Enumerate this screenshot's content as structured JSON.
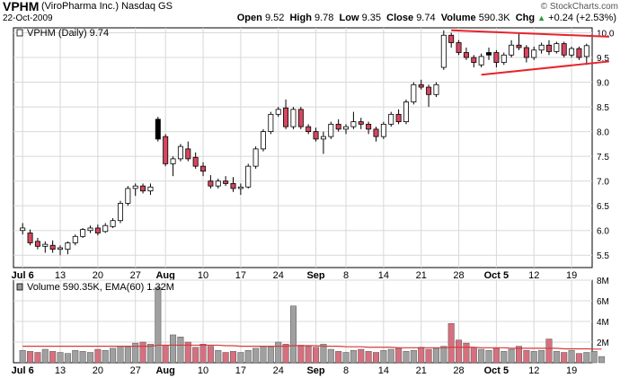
{
  "header": {
    "symbol": "VPHM",
    "company": "(ViroPharma Inc.)",
    "exchange": "Nasdaq GS",
    "date": "22-Oct-2009",
    "watermark": "© StockCharts.com",
    "open_label": "Open",
    "open": "9.52",
    "high_label": "High",
    "high": "9.78",
    "low_label": "Low",
    "low": "9.35",
    "close_label": "Close",
    "close": "9.74",
    "volume_label": "Volume",
    "volume": "590.3K",
    "chg_label": "Chg",
    "chg": "+0.24 (+2.53%)",
    "chg_arrow": "▲"
  },
  "price_legend": "VPHM (Daily) 9.74",
  "volume_legend": "Volume 590.35K, EMA(60) 1.32M",
  "colors": {
    "up": "#ffffff",
    "down": "#d6465e",
    "black": "#000000",
    "trend": "#e8242c",
    "volume_up": "#a0a0a0",
    "volume_down": "#d6707f",
    "ema": "#d63a3a",
    "grid": "#d8d8d8"
  },
  "chart_data": [
    {
      "type": "candlestick",
      "ylim": [
        5.25,
        10.1
      ],
      "y_ticks": [
        "5.5",
        "6.0",
        "6.5",
        "7.0",
        "7.5",
        "8.0",
        "8.5",
        "9.0",
        "9.5",
        "10.0"
      ],
      "x_tick_labels": [
        "Jul 6",
        "13",
        "20",
        "27",
        "Aug",
        "10",
        "17",
        "24",
        "Sep",
        "8",
        "14",
        "21",
        "28",
        "Oct 5",
        "12",
        "19"
      ],
      "x_tick_bold": [
        true,
        false,
        false,
        false,
        true,
        false,
        false,
        false,
        true,
        false,
        false,
        false,
        false,
        true,
        false,
        false
      ],
      "x_tick_index": [
        0,
        5,
        10,
        15,
        19,
        24,
        29,
        34,
        39,
        43,
        48,
        53,
        58,
        63,
        68,
        73
      ],
      "candles": [
        {
          "o": 6.0,
          "h": 6.15,
          "l": 5.92,
          "c": 6.05,
          "t": "up"
        },
        {
          "o": 5.95,
          "h": 6.02,
          "l": 5.7,
          "c": 5.75,
          "t": "down"
        },
        {
          "o": 5.78,
          "h": 5.85,
          "l": 5.62,
          "c": 5.68,
          "t": "down"
        },
        {
          "o": 5.68,
          "h": 5.78,
          "l": 5.55,
          "c": 5.72,
          "t": "up"
        },
        {
          "o": 5.7,
          "h": 5.8,
          "l": 5.55,
          "c": 5.62,
          "t": "down"
        },
        {
          "o": 5.62,
          "h": 5.7,
          "l": 5.5,
          "c": 5.65,
          "t": "up"
        },
        {
          "o": 5.62,
          "h": 5.78,
          "l": 5.52,
          "c": 5.75,
          "t": "up"
        },
        {
          "o": 5.75,
          "h": 5.92,
          "l": 5.7,
          "c": 5.88,
          "t": "up"
        },
        {
          "o": 5.88,
          "h": 6.05,
          "l": 5.85,
          "c": 6.02,
          "t": "up"
        },
        {
          "o": 6.0,
          "h": 6.1,
          "l": 5.95,
          "c": 6.05,
          "t": "up"
        },
        {
          "o": 6.05,
          "h": 6.12,
          "l": 5.9,
          "c": 5.95,
          "t": "down"
        },
        {
          "o": 5.98,
          "h": 6.15,
          "l": 5.95,
          "c": 6.1,
          "t": "up"
        },
        {
          "o": 6.08,
          "h": 6.25,
          "l": 6.05,
          "c": 6.2,
          "t": "up"
        },
        {
          "o": 6.2,
          "h": 6.6,
          "l": 6.15,
          "c": 6.55,
          "t": "up"
        },
        {
          "o": 6.55,
          "h": 6.9,
          "l": 6.5,
          "c": 6.85,
          "t": "up"
        },
        {
          "o": 6.85,
          "h": 6.95,
          "l": 6.7,
          "c": 6.9,
          "t": "up"
        },
        {
          "o": 6.9,
          "h": 6.95,
          "l": 6.75,
          "c": 6.8,
          "t": "down"
        },
        {
          "o": 6.8,
          "h": 6.95,
          "l": 6.72,
          "c": 6.88,
          "t": "up"
        },
        {
          "o": 8.25,
          "h": 8.3,
          "l": 7.8,
          "c": 7.85,
          "t": "black"
        },
        {
          "o": 7.9,
          "h": 7.95,
          "l": 7.3,
          "c": 7.35,
          "t": "down"
        },
        {
          "o": 7.35,
          "h": 7.5,
          "l": 7.1,
          "c": 7.45,
          "t": "up"
        },
        {
          "o": 7.45,
          "h": 7.75,
          "l": 7.4,
          "c": 7.7,
          "t": "up"
        },
        {
          "o": 7.65,
          "h": 7.8,
          "l": 7.4,
          "c": 7.45,
          "t": "down"
        },
        {
          "o": 7.48,
          "h": 7.58,
          "l": 7.25,
          "c": 7.3,
          "t": "down"
        },
        {
          "o": 7.3,
          "h": 7.38,
          "l": 7.1,
          "c": 7.2,
          "t": "down"
        },
        {
          "o": 7.0,
          "h": 7.12,
          "l": 6.85,
          "c": 6.9,
          "t": "down"
        },
        {
          "o": 6.9,
          "h": 7.05,
          "l": 6.85,
          "c": 7.0,
          "t": "up"
        },
        {
          "o": 7.0,
          "h": 7.1,
          "l": 6.9,
          "c": 6.95,
          "t": "down"
        },
        {
          "o": 6.95,
          "h": 7.08,
          "l": 6.78,
          "c": 6.85,
          "t": "down"
        },
        {
          "o": 6.85,
          "h": 6.95,
          "l": 6.72,
          "c": 6.88,
          "t": "up"
        },
        {
          "o": 6.88,
          "h": 7.35,
          "l": 6.85,
          "c": 7.3,
          "t": "up"
        },
        {
          "o": 7.3,
          "h": 7.7,
          "l": 7.25,
          "c": 7.65,
          "t": "up"
        },
        {
          "o": 7.65,
          "h": 8.05,
          "l": 7.6,
          "c": 8.0,
          "t": "up"
        },
        {
          "o": 8.0,
          "h": 8.4,
          "l": 7.95,
          "c": 8.35,
          "t": "up"
        },
        {
          "o": 8.35,
          "h": 8.5,
          "l": 8.3,
          "c": 8.45,
          "t": "up"
        },
        {
          "o": 8.48,
          "h": 8.65,
          "l": 8.05,
          "c": 8.1,
          "t": "down"
        },
        {
          "o": 8.1,
          "h": 8.5,
          "l": 8.05,
          "c": 8.45,
          "t": "up"
        },
        {
          "o": 8.45,
          "h": 8.5,
          "l": 8.05,
          "c": 8.1,
          "t": "down"
        },
        {
          "o": 8.1,
          "h": 8.15,
          "l": 7.95,
          "c": 8.0,
          "t": "down"
        },
        {
          "o": 8.0,
          "h": 8.08,
          "l": 7.8,
          "c": 7.85,
          "t": "down"
        },
        {
          "o": 7.85,
          "h": 8.0,
          "l": 7.55,
          "c": 7.9,
          "t": "up"
        },
        {
          "o": 7.9,
          "h": 8.2,
          "l": 7.85,
          "c": 8.15,
          "t": "up"
        },
        {
          "o": 8.15,
          "h": 8.25,
          "l": 8.0,
          "c": 8.05,
          "t": "down"
        },
        {
          "o": 8.05,
          "h": 8.15,
          "l": 7.95,
          "c": 8.1,
          "t": "up"
        },
        {
          "o": 8.1,
          "h": 8.4,
          "l": 8.05,
          "c": 8.2,
          "t": "up"
        },
        {
          "o": 8.2,
          "h": 8.28,
          "l": 8.05,
          "c": 8.15,
          "t": "down"
        },
        {
          "o": 8.15,
          "h": 8.2,
          "l": 7.95,
          "c": 8.05,
          "t": "down"
        },
        {
          "o": 8.05,
          "h": 8.1,
          "l": 7.8,
          "c": 7.9,
          "t": "down"
        },
        {
          "o": 7.9,
          "h": 8.2,
          "l": 7.85,
          "c": 8.15,
          "t": "up"
        },
        {
          "o": 8.15,
          "h": 8.4,
          "l": 8.1,
          "c": 8.35,
          "t": "up"
        },
        {
          "o": 8.35,
          "h": 8.45,
          "l": 8.15,
          "c": 8.2,
          "t": "down"
        },
        {
          "o": 8.2,
          "h": 8.65,
          "l": 8.15,
          "c": 8.6,
          "t": "up"
        },
        {
          "o": 8.6,
          "h": 9.0,
          "l": 8.55,
          "c": 8.95,
          "t": "up"
        },
        {
          "o": 8.95,
          "h": 9.05,
          "l": 8.85,
          "c": 8.9,
          "t": "down"
        },
        {
          "o": 8.9,
          "h": 8.95,
          "l": 8.5,
          "c": 8.75,
          "t": "down"
        },
        {
          "o": 8.75,
          "h": 9.0,
          "l": 8.7,
          "c": 8.95,
          "t": "up"
        },
        {
          "o": 9.3,
          "h": 10.05,
          "l": 9.25,
          "c": 9.95,
          "t": "up"
        },
        {
          "o": 9.95,
          "h": 10.0,
          "l": 9.7,
          "c": 9.8,
          "t": "down"
        },
        {
          "o": 9.8,
          "h": 9.85,
          "l": 9.55,
          "c": 9.6,
          "t": "down"
        },
        {
          "o": 9.6,
          "h": 9.7,
          "l": 9.45,
          "c": 9.5,
          "t": "down"
        },
        {
          "o": 9.5,
          "h": 9.55,
          "l": 9.3,
          "c": 9.4,
          "t": "down"
        },
        {
          "o": 9.35,
          "h": 9.58,
          "l": 9.3,
          "c": 9.52,
          "t": "up"
        },
        {
          "o": 9.55,
          "h": 9.7,
          "l": 9.45,
          "c": 9.6,
          "t": "black"
        },
        {
          "o": 9.6,
          "h": 9.65,
          "l": 9.3,
          "c": 9.4,
          "t": "down"
        },
        {
          "o": 9.4,
          "h": 9.6,
          "l": 9.35,
          "c": 9.55,
          "t": "up"
        },
        {
          "o": 9.55,
          "h": 9.85,
          "l": 9.5,
          "c": 9.75,
          "t": "up"
        },
        {
          "o": 9.75,
          "h": 9.98,
          "l": 9.65,
          "c": 9.7,
          "t": "down"
        },
        {
          "o": 9.7,
          "h": 9.75,
          "l": 9.4,
          "c": 9.5,
          "t": "down"
        },
        {
          "o": 9.5,
          "h": 9.72,
          "l": 9.45,
          "c": 9.65,
          "t": "up"
        },
        {
          "o": 9.65,
          "h": 9.8,
          "l": 9.58,
          "c": 9.75,
          "t": "up"
        },
        {
          "o": 9.75,
          "h": 9.85,
          "l": 9.55,
          "c": 9.62,
          "t": "down"
        },
        {
          "o": 9.62,
          "h": 9.82,
          "l": 9.58,
          "c": 9.78,
          "t": "up"
        },
        {
          "o": 9.78,
          "h": 9.82,
          "l": 9.5,
          "c": 9.55,
          "t": "down"
        },
        {
          "o": 9.55,
          "h": 9.72,
          "l": 9.5,
          "c": 9.68,
          "t": "up"
        },
        {
          "o": 9.68,
          "h": 9.72,
          "l": 9.45,
          "c": 9.5,
          "t": "down"
        },
        {
          "o": 9.52,
          "h": 9.78,
          "l": 9.35,
          "c": 9.74,
          "t": "up"
        }
      ],
      "trendlines": [
        {
          "x1": 57,
          "y1": 10.05,
          "x2": 78,
          "y2": 9.92
        },
        {
          "x1": 61,
          "y1": 9.15,
          "x2": 78,
          "y2": 9.42
        }
      ]
    },
    {
      "type": "bar",
      "ylim": [
        0,
        8
      ],
      "y_ticks": [
        "2M",
        "4M",
        "6M",
        "8M"
      ],
      "series": [
        {
          "name": "Volume",
          "values": [
            1.2,
            1.1,
            1.0,
            1.3,
            1.1,
            1.0,
            0.9,
            1.2,
            1.1,
            1.0,
            1.3,
            1.2,
            1.4,
            1.6,
            1.5,
            1.9,
            2.0,
            1.8,
            7.3,
            1.7,
            2.7,
            2.5,
            2.0,
            1.5,
            1.8,
            1.6,
            1.2,
            1.0,
            1.1,
            1.0,
            1.2,
            1.4,
            1.6,
            1.5,
            2.0,
            1.8,
            5.5,
            1.7,
            1.6,
            1.5,
            1.8,
            1.3,
            1.1,
            1.0,
            1.2,
            1.3,
            1.1,
            1.0,
            1.2,
            1.3,
            1.4,
            1.1,
            1.2,
            1.5,
            1.3,
            1.4,
            1.6,
            3.8,
            2.2,
            1.9,
            1.5,
            1.3,
            1.2,
            1.4,
            1.1,
            1.3,
            1.6,
            1.2,
            1.1,
            1.2,
            2.3,
            1.1,
            1.0,
            1.2,
            0.9,
            1.0,
            1.1,
            0.6
          ]
        },
        {
          "name": "EMA(60)",
          "values": [
            1.6,
            1.6,
            1.6,
            1.6,
            1.6,
            1.6,
            1.6,
            1.6,
            1.6,
            1.6,
            1.6,
            1.6,
            1.6,
            1.6,
            1.6,
            1.6,
            1.6,
            1.6,
            1.7,
            1.7,
            1.7,
            1.7,
            1.7,
            1.7,
            1.7,
            1.7,
            1.7,
            1.65,
            1.65,
            1.6,
            1.6,
            1.6,
            1.6,
            1.6,
            1.6,
            1.6,
            1.65,
            1.65,
            1.65,
            1.65,
            1.6,
            1.6,
            1.6,
            1.55,
            1.55,
            1.55,
            1.5,
            1.5,
            1.5,
            1.5,
            1.45,
            1.45,
            1.45,
            1.45,
            1.45,
            1.45,
            1.45,
            1.5,
            1.5,
            1.5,
            1.5,
            1.45,
            1.45,
            1.45,
            1.45,
            1.4,
            1.4,
            1.4,
            1.4,
            1.4,
            1.4,
            1.4,
            1.35,
            1.35,
            1.35,
            1.35,
            1.32,
            1.32
          ]
        }
      ]
    }
  ]
}
